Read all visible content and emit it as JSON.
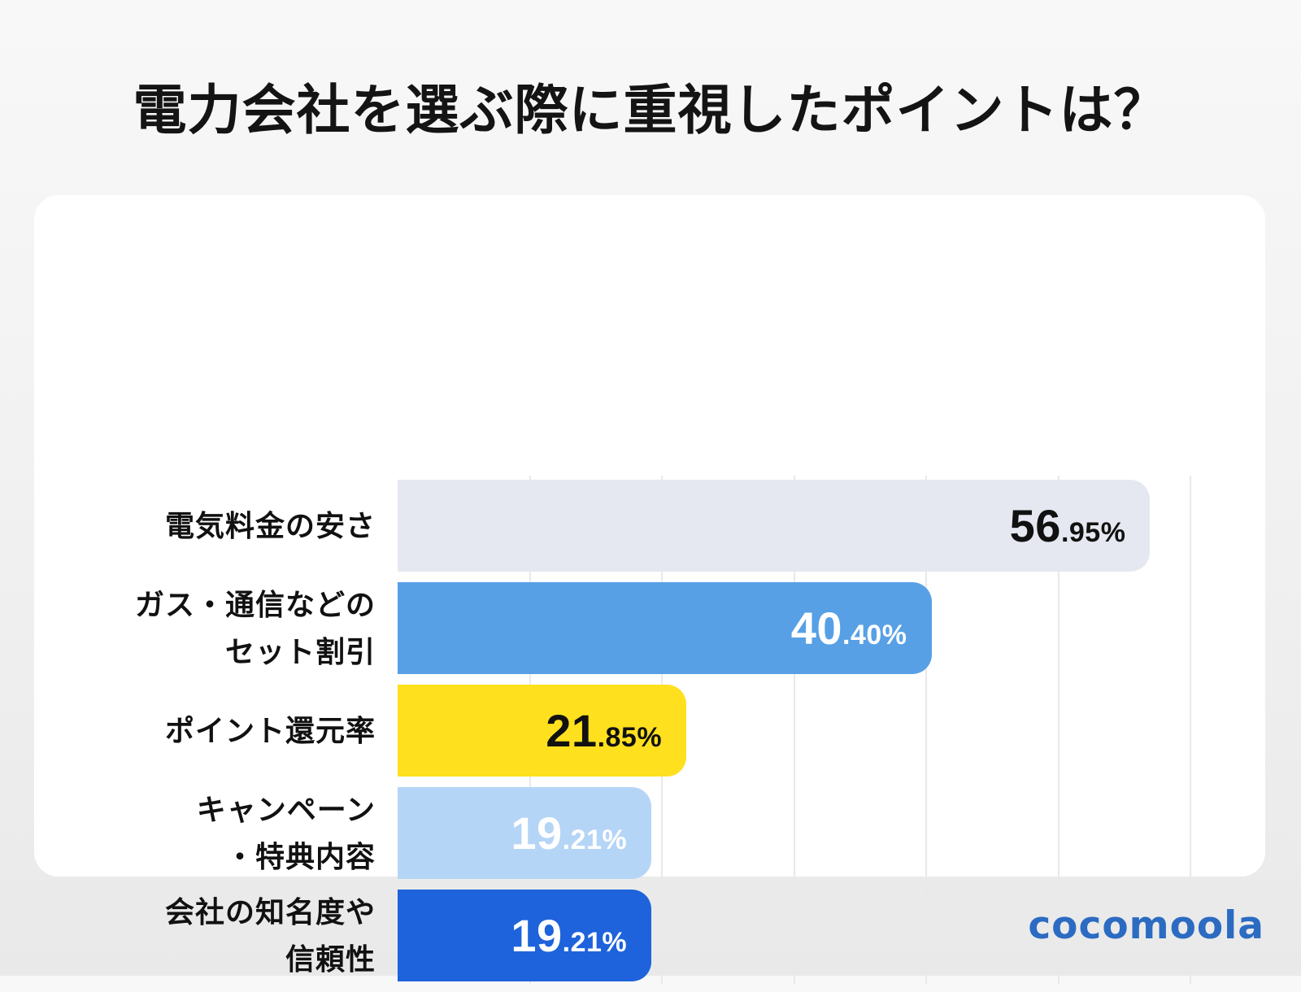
{
  "page": {
    "title": "電力会社を選ぶ際に重視したポイントは？",
    "brand": "cocomoola",
    "brand_color": "#2B6BC2",
    "title_color": "#141414",
    "card_bg": "#FFFFFF",
    "page_bg_top": "#F8F8F8",
    "page_bg_bottom": "#E9E9E9",
    "gridline_color": "#E9E9EB"
  },
  "chart_data": {
    "type": "bar",
    "orientation": "horizontal",
    "title": "電力会社を選ぶ際に重視したポイントは？",
    "categories": [
      "電気料金の安さ",
      "ガス・通信などのセット割引",
      "ポイント還元率",
      "キャンペーン・特典内容",
      "会社の知名度や信頼性"
    ],
    "category_lines": [
      [
        "電気料金の安さ"
      ],
      [
        "ガス・通信などの",
        "セット割引"
      ],
      [
        "ポイント還元率"
      ],
      [
        "キャンペーン",
        "・特典内容"
      ],
      [
        "会社の知名度や",
        "信頼性"
      ]
    ],
    "values": [
      56.95,
      40.4,
      21.85,
      19.21,
      19.21
    ],
    "value_labels": [
      "56.95%",
      "40.40%",
      "21.85%",
      "19.21%",
      "19.21%"
    ],
    "bar_colors": [
      "#E5E8F0",
      "#57A0E6",
      "#FFE01E",
      "#B5D5F7",
      "#1E63DB"
    ],
    "value_label_colors": [
      "#111111",
      "#FFFFFF",
      "#111111",
      "#FFFFFF",
      "#FFFFFF"
    ],
    "xlabel": "",
    "ylabel": "",
    "xlim": [
      0,
      60
    ],
    "grid": true,
    "grid_step_percent": 10,
    "legend": false
  }
}
